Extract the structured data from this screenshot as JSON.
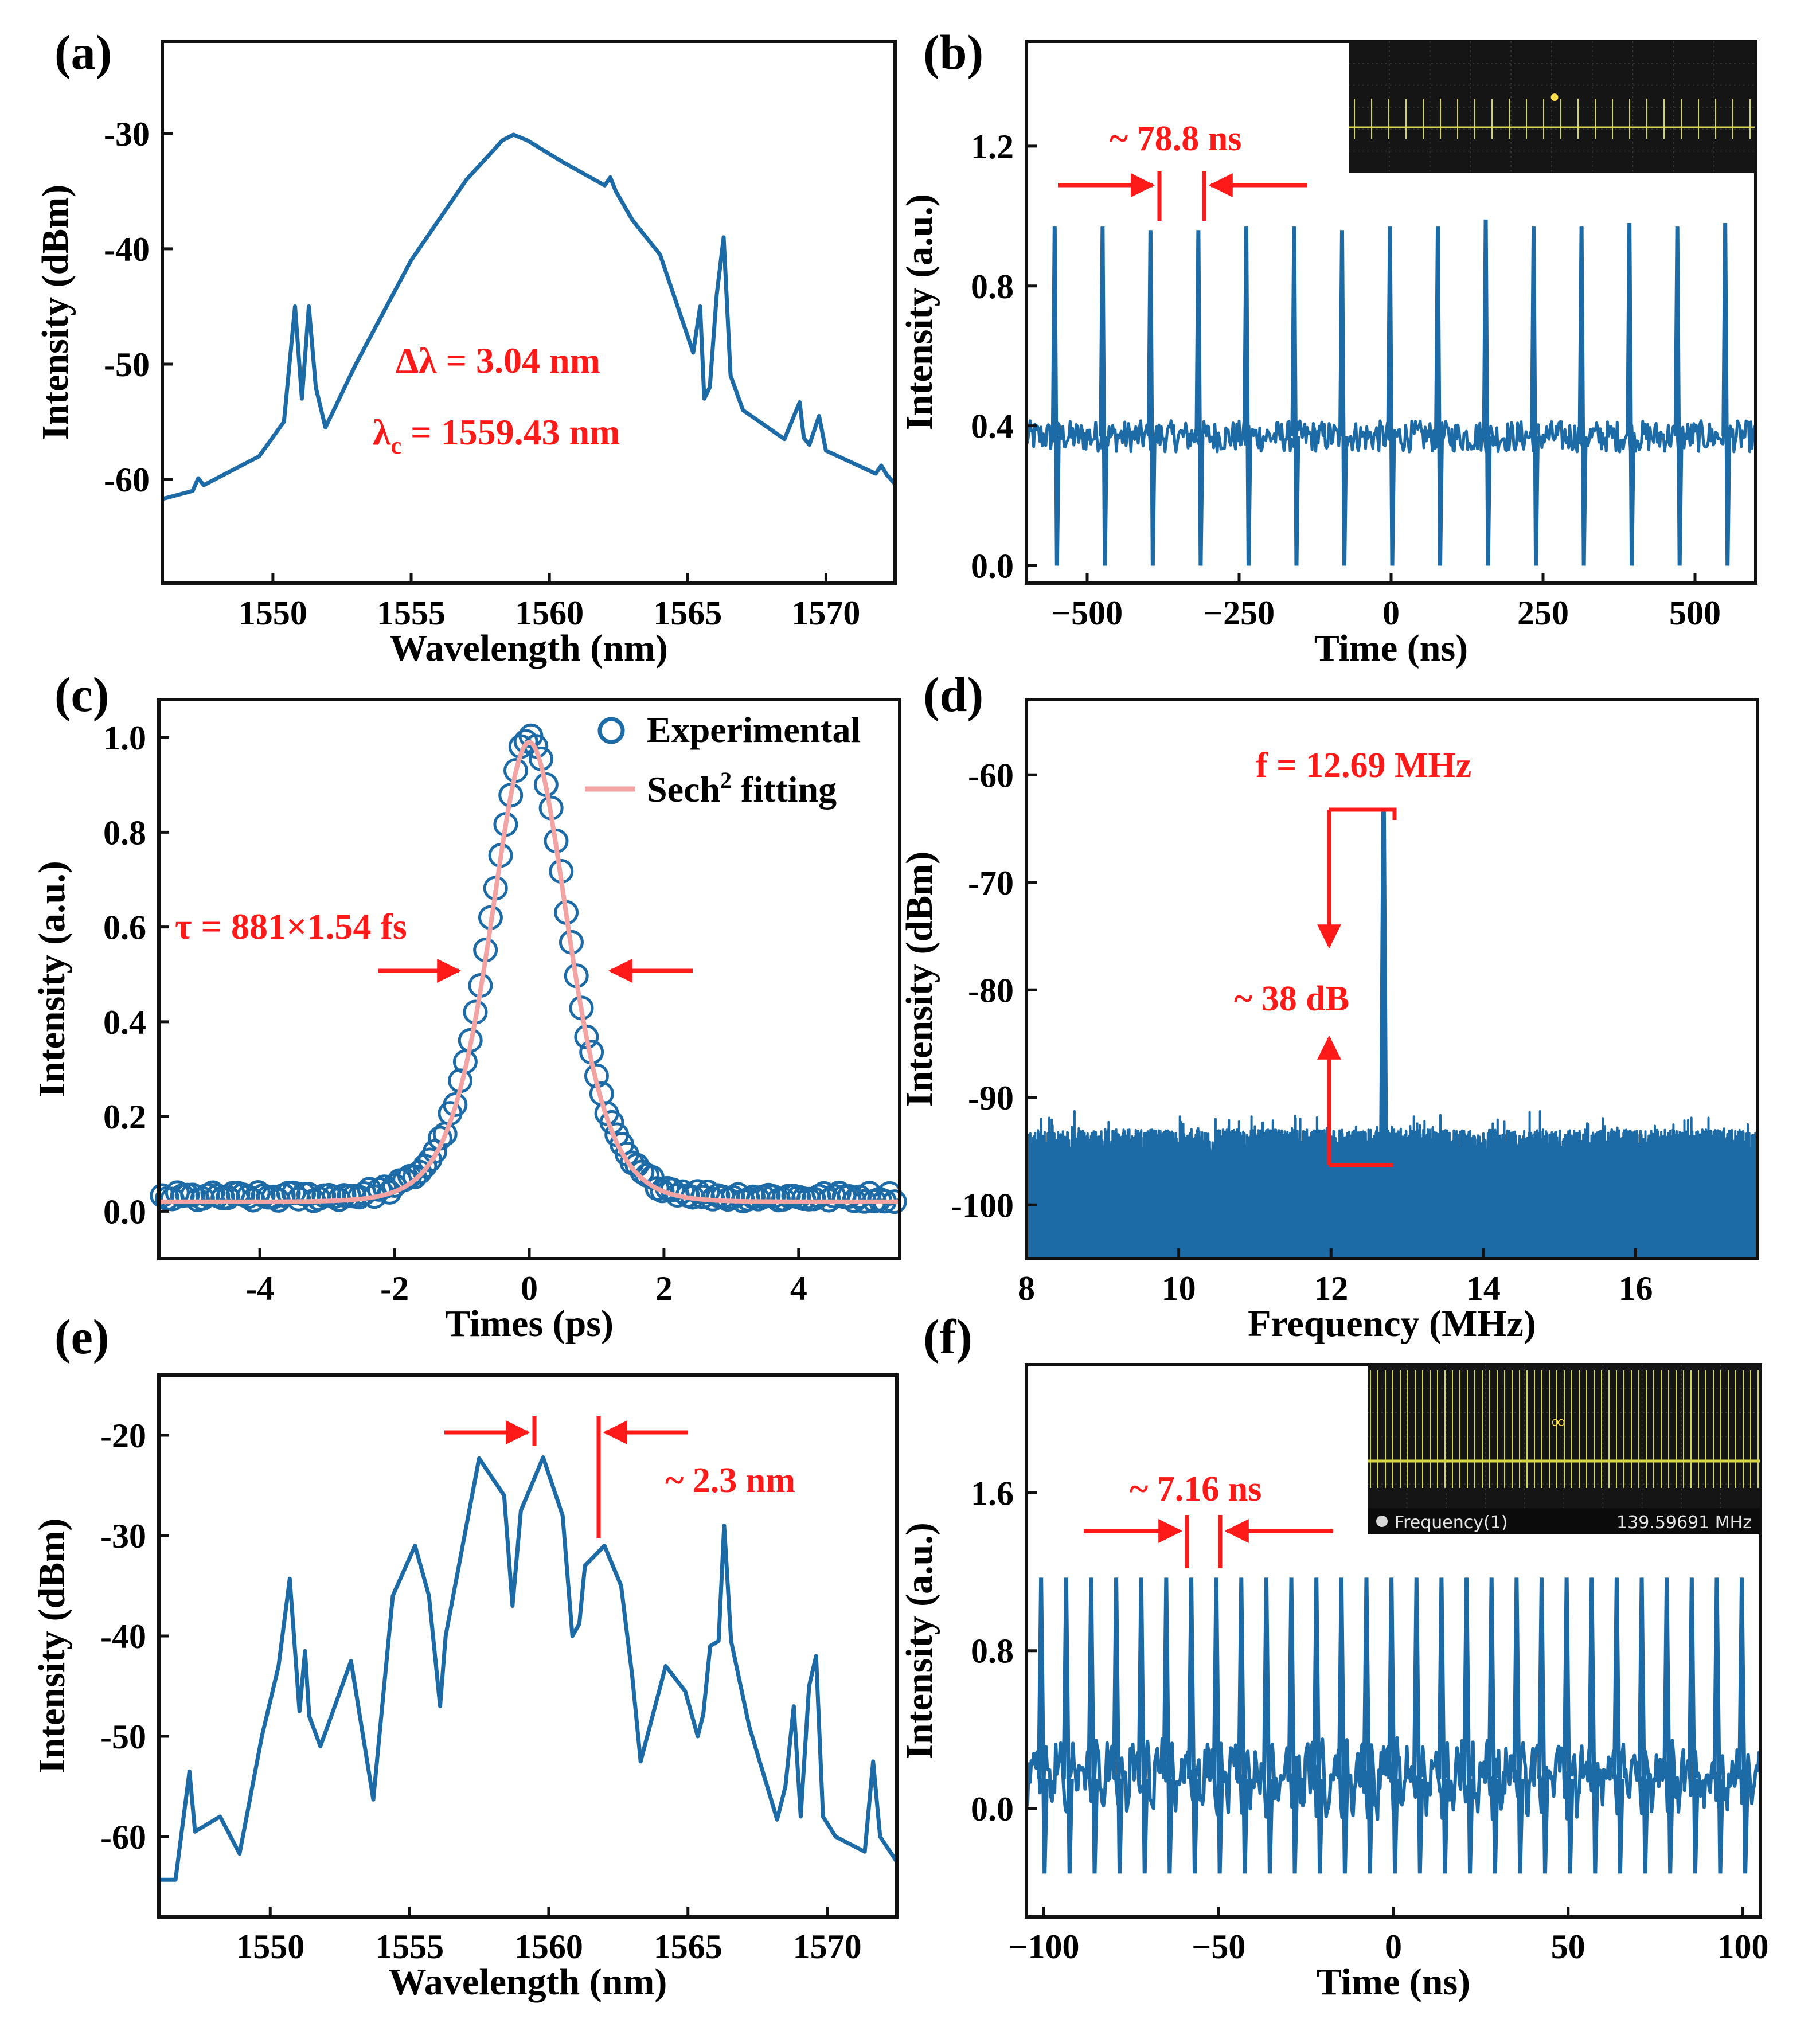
{
  "colors": {
    "data": "#1c6aa6",
    "annot": "#ff1a1a",
    "fit": "#f4a3a3",
    "axis": "#111111",
    "scope_bg": "#151515",
    "scope_trace": "#d6d64a"
  },
  "chart_data": [
    {
      "id": "a",
      "panel_label": "(a)",
      "type": "line",
      "xlabel": "Wavelength (nm)",
      "ylabel": "Intensity (dBm)",
      "xlim": [
        1546,
        1572.5
      ],
      "ylim": [
        -69,
        -22
      ],
      "xticks": [
        1550,
        1555,
        1560,
        1565,
        1570
      ],
      "yticks": [
        -30,
        -40,
        -50,
        -60
      ],
      "x": [
        1546,
        1547.1,
        1547.3,
        1547.5,
        1549.5,
        1550.4,
        1550.8,
        1551.05,
        1551.3,
        1551.55,
        1551.9,
        1553,
        1555,
        1557,
        1558.3,
        1558.7,
        1559.2,
        1560.5,
        1562,
        1562.2,
        1562.4,
        1563,
        1564,
        1565.2,
        1565.45,
        1565.6,
        1565.8,
        1566.05,
        1566.3,
        1566.55,
        1567,
        1568.5,
        1569.05,
        1569.2,
        1569.4,
        1569.75,
        1570,
        1571.8,
        1572,
        1572.2,
        1572.5
      ],
      "y": [
        -61.7,
        -61,
        -59.9,
        -60.5,
        -58,
        -55,
        -45,
        -53,
        -45,
        -52,
        -55.5,
        -50,
        -41,
        -34,
        -30.6,
        -30.1,
        -30.6,
        -32.5,
        -34.5,
        -33.8,
        -35,
        -37.5,
        -40.5,
        -49,
        -45,
        -53,
        -52,
        -44,
        -39,
        -51,
        -54,
        -56.5,
        -53.3,
        -56.4,
        -57,
        -54.5,
        -57.5,
        -59.5,
        -58.8,
        -59.6,
        -60.4
      ],
      "annotations": [
        "Δλ = 3.04 nm",
        "1559.43 nm"
      ],
      "annotation_prefix": "λ",
      "annotation_sub": "c",
      "annotation_eq": " = "
    },
    {
      "id": "b",
      "panel_label": "(b)",
      "type": "line",
      "xlabel": "Time (ns)",
      "ylabel": "Intensity (a.u.)",
      "xlim": [
        -600,
        600
      ],
      "ylim": [
        -0.05,
        1.5
      ],
      "xticks": [
        -500,
        -250,
        0,
        250,
        500
      ],
      "xtick_labels": [
        "−500",
        "−250",
        "0",
        "250",
        "500"
      ],
      "yticks": [
        0.0,
        0.4,
        0.8,
        1.2
      ],
      "ytick_labels": [
        "0.0",
        "0.4",
        "0.8",
        "1.2"
      ],
      "baseline": 0.37,
      "pulse_min": 0.0,
      "pulse_times": [
        -551.6,
        -472.8,
        -394,
        -315.2,
        -236.4,
        -157.6,
        -78.8,
        0,
        78.8,
        157.6,
        236.4,
        315.2,
        394,
        472.8,
        551.6
      ],
      "pulse_peaks": [
        0.97,
        0.97,
        0.96,
        0.96,
        0.97,
        0.97,
        0.96,
        0.97,
        0.97,
        0.99,
        0.97,
        0.97,
        0.98,
        0.97,
        0.98
      ],
      "annotations": [
        "~ 78.8 ns"
      ]
    },
    {
      "id": "c",
      "panel_label": "(c)",
      "type": "scatter+line",
      "xlabel": "Times (ps)",
      "ylabel": "Intensity (a.u.)",
      "xlim": [
        -5.5,
        5.5
      ],
      "ylim": [
        -0.1,
        1.08
      ],
      "xticks": [
        -4,
        -2,
        0,
        2,
        4
      ],
      "yticks": [
        0.0,
        0.2,
        0.4,
        0.6,
        0.8,
        1.0
      ],
      "ytick_labels": [
        "0.0",
        "0.2",
        "0.4",
        "0.6",
        "0.8",
        "1.0"
      ],
      "series": [
        {
          "name": "Experimental",
          "marker": "open-circle"
        },
        {
          "name": "Sech",
          "superscript": "2",
          "suffix": " fitting"
        }
      ],
      "fwhm_ps": 1.36,
      "peak": 0.97,
      "offset": 0.02,
      "annotations": [
        "τ = 881×1.54 fs"
      ]
    },
    {
      "id": "d",
      "panel_label": "(d)",
      "type": "line",
      "xlabel": "Frequency (MHz)",
      "ylabel": "Intensity (dBm)",
      "xlim": [
        8,
        17.6
      ],
      "ylim": [
        -105,
        -53
      ],
      "xticks": [
        8,
        10,
        12,
        14,
        16
      ],
      "yticks": [
        -60,
        -70,
        -80,
        -90,
        -100
      ],
      "signal_freq_mhz": 12.69,
      "signal_peak_dbm": -63.3,
      "noise_floor_dbm": -96,
      "annotations": [
        "f = 12.69 MHz",
        "~ 38 dB"
      ]
    },
    {
      "id": "e",
      "panel_label": "(e)",
      "type": "line",
      "xlabel": "Wavelength (nm)",
      "ylabel": "Intensity (dBm)",
      "xlim": [
        1546,
        1572.5
      ],
      "ylim": [
        -68,
        -14
      ],
      "xticks": [
        1550,
        1555,
        1560,
        1565,
        1570
      ],
      "yticks": [
        -20,
        -30,
        -40,
        -50,
        -60
      ],
      "x": [
        1546,
        1546.6,
        1547.1,
        1547.3,
        1547.6,
        1548.2,
        1548.9,
        1549.7,
        1550.3,
        1550.7,
        1551.05,
        1551.25,
        1551.4,
        1551.8,
        1552.9,
        1553.7,
        1554.4,
        1555.2,
        1555.7,
        1556.1,
        1556.3,
        1557.5,
        1558.4,
        1558.7,
        1559,
        1559.8,
        1560.5,
        1560.85,
        1561.1,
        1561.3,
        1562,
        1562.6,
        1563,
        1563.3,
        1564.2,
        1564.9,
        1565.35,
        1565.55,
        1565.8,
        1566.1,
        1566.3,
        1566.55,
        1567.2,
        1568.2,
        1568.5,
        1568.8,
        1569.05,
        1569.35,
        1569.6,
        1569.85,
        1570.3,
        1571.35,
        1571.65,
        1571.9,
        1572.5
      ],
      "y": [
        -64.3,
        -64.3,
        -53.5,
        -59.5,
        -59,
        -58,
        -61.7,
        -50,
        -43,
        -34.3,
        -47.5,
        -41.5,
        -48,
        -51,
        -42.5,
        -56.3,
        -36,
        -31,
        -36,
        -47,
        -40,
        -22.3,
        -26,
        -37,
        -27.5,
        -22.2,
        -28,
        -40,
        -38.8,
        -33,
        -31,
        -35,
        -44,
        -52.5,
        -43,
        -45.5,
        -50,
        -47.8,
        -41,
        -40.5,
        -29,
        -40.5,
        -49,
        -58.3,
        -55,
        -47,
        -58,
        -45,
        -42,
        -58,
        -60,
        -61.5,
        -52.5,
        -60,
        -62.5
      ],
      "annotations": [
        "~ 2.3 nm"
      ]
    },
    {
      "id": "f",
      "panel_label": "(f)",
      "type": "line",
      "xlabel": "Time (ns)",
      "ylabel": "Intensity (a.u.)",
      "xlim": [
        -105,
        105
      ],
      "ylim": [
        -0.55,
        2.25
      ],
      "xticks": [
        -100,
        -50,
        0,
        50,
        100
      ],
      "xtick_labels": [
        "−100",
        "−50",
        "0",
        "50",
        "100"
      ],
      "yticks": [
        0.0,
        0.8,
        1.6
      ],
      "ytick_labels": [
        "0.0",
        "0.8",
        "1.6"
      ],
      "baseline": 0.15,
      "pulse_period_ns": 7.16,
      "pulse_peak": 1.17,
      "pulse_min": -0.33,
      "annotations": [
        "~ 7.16 ns"
      ]
    }
  ],
  "insets": {
    "b": {
      "marker": "●"
    },
    "f": {
      "marker": "∞",
      "readout_label": "Frequency(1)",
      "readout_value": "139.59691 MHz"
    }
  }
}
